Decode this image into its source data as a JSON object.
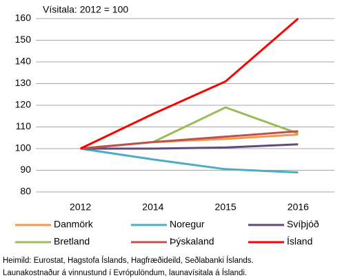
{
  "chart_data": {
    "type": "line",
    "subtitle": "Vísitala: 2012 = 100",
    "categories": [
      "2012",
      "2014",
      "2015",
      "2016"
    ],
    "series": [
      {
        "name": "Danmörk",
        "color": "#f79646",
        "values": [
          100,
          103,
          104.5,
          106.5
        ]
      },
      {
        "name": "Noregur",
        "color": "#4bacc6",
        "values": [
          100,
          95,
          90.5,
          89
        ]
      },
      {
        "name": "Svíþjóð",
        "color": "#604a7b",
        "values": [
          100,
          100,
          100.5,
          102
        ]
      },
      {
        "name": "Bretland",
        "color": "#9bbb59",
        "values": [
          100,
          103,
          119,
          107
        ]
      },
      {
        "name": "Þýskaland",
        "color": "#c0504d",
        "values": [
          100,
          103,
          105.5,
          108
        ]
      },
      {
        "name": "Ísland",
        "color": "#ff0000",
        "values": [
          100,
          116,
          131,
          160
        ]
      }
    ],
    "ylim": [
      80,
      160
    ],
    "yticks": [
      80,
      90,
      100,
      110,
      120,
      130,
      140,
      150,
      160
    ],
    "grid": true,
    "notes": [
      "Heimild: Eurostat, Hagstofa Íslands, Hagfræðideild, Seðlabanki Íslands.",
      "Launakostnaður á vinnustund í Evrópulöndum, launavísitala á Íslandi."
    ]
  }
}
